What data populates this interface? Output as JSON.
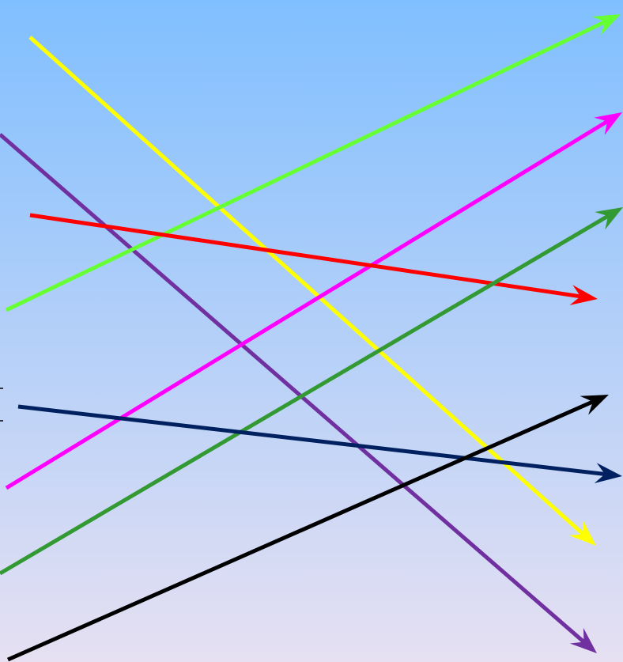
{
  "background": {
    "top_color": "#80bfff",
    "bottom_color": "#e6e0f2"
  },
  "arrows": [
    {
      "id": "yellow",
      "color": "#ffff00"
    },
    {
      "id": "purple",
      "color": "#7030a0"
    },
    {
      "id": "lime",
      "color": "#66ff33"
    },
    {
      "id": "magenta",
      "color": "#ff00ff"
    },
    {
      "id": "red",
      "color": "#ff0000"
    },
    {
      "id": "green",
      "color": "#339933"
    },
    {
      "id": "navy",
      "color": "#002060"
    },
    {
      "id": "black",
      "color": "#000000"
    }
  ]
}
